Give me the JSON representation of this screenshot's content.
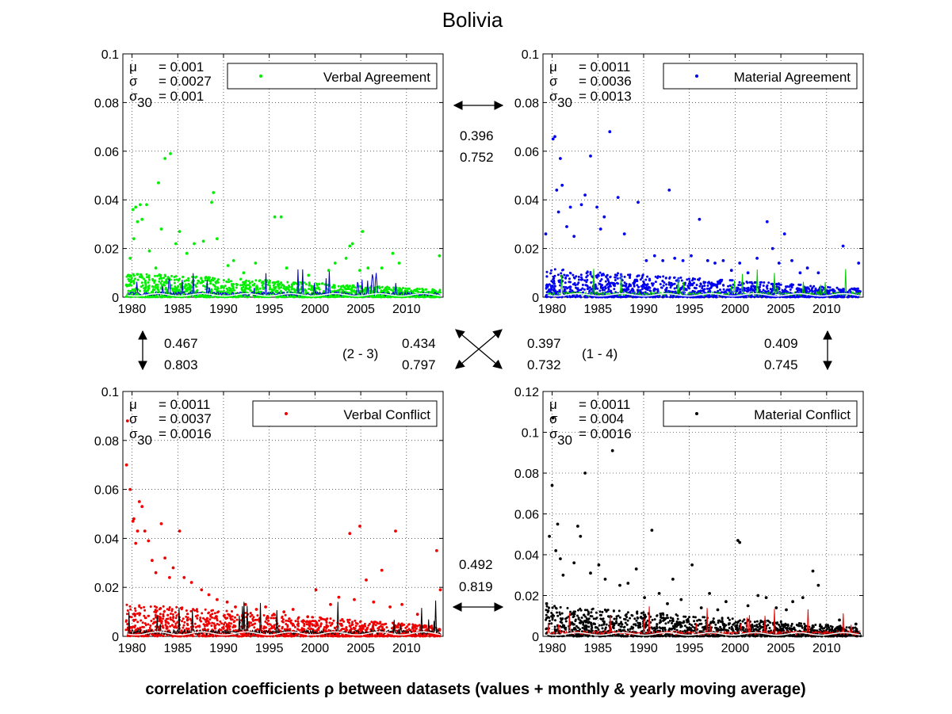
{
  "figure": {
    "title": "Bolivia",
    "caption": "correlation coefficients ρ between datasets (values + monthly & yearly moving average)"
  },
  "chart_data": [
    {
      "type": "scatter",
      "id": "verbal-agreement",
      "legend": "Verbal Agreement",
      "color": "#00ee00",
      "avg_color": "#0000cc",
      "xlim": [
        1979,
        2014
      ],
      "ylim": [
        0,
        0.1
      ],
      "xticks": [
        1980,
        1985,
        1990,
        1995,
        2000,
        2005,
        2010
      ],
      "xtick_labels": [
        "1980",
        "1985",
        "1990",
        "1995",
        "2000",
        "2005",
        "2010"
      ],
      "yticks": [
        0,
        0.02,
        0.04,
        0.06,
        0.08,
        0.1
      ],
      "ytick_labels": [
        "0",
        "0.02",
        "0.04",
        "0.06",
        "0.08",
        "0.1"
      ],
      "grid": true,
      "legend_position": "top-right",
      "stats": {
        "mu": "= 0.001",
        "sigma": "= 0.0027",
        "sigma30": "= 0.001"
      },
      "outliers": [
        [
          1979.4,
          0.005
        ],
        [
          1979.6,
          0.009
        ],
        [
          1979.8,
          0.016
        ],
        [
          1980.1,
          0.036
        ],
        [
          1980.2,
          0.024
        ],
        [
          1980.4,
          0.037
        ],
        [
          1980.6,
          0.031
        ],
        [
          1980.9,
          0.038
        ],
        [
          1981.1,
          0.032
        ],
        [
          1981.6,
          0.038
        ],
        [
          1981.9,
          0.019
        ],
        [
          1982.6,
          0.012
        ],
        [
          1982.9,
          0.047
        ],
        [
          1983.2,
          0.028
        ],
        [
          1983.6,
          0.057
        ],
        [
          1984.2,
          0.059
        ],
        [
          1984.8,
          0.022
        ],
        [
          1985.2,
          0.027
        ],
        [
          1986.0,
          0.018
        ],
        [
          1986.8,
          0.022
        ],
        [
          1987.8,
          0.023
        ],
        [
          1988.7,
          0.039
        ],
        [
          1988.9,
          0.043
        ],
        [
          1989.3,
          0.024
        ],
        [
          1990.5,
          0.013
        ],
        [
          1991.1,
          0.015
        ],
        [
          1992.2,
          0.01
        ],
        [
          1993.5,
          0.014
        ],
        [
          1995.6,
          0.033
        ],
        [
          1996.3,
          0.033
        ],
        [
          1996.9,
          0.012
        ],
        [
          1999.3,
          0.009
        ],
        [
          2001.5,
          0.011
        ],
        [
          2002.2,
          0.014
        ],
        [
          2003.4,
          0.016
        ],
        [
          2003.8,
          0.021
        ],
        [
          2004.1,
          0.022
        ],
        [
          2004.9,
          0.011
        ],
        [
          2005.2,
          0.027
        ],
        [
          2005.8,
          0.012
        ],
        [
          2007.3,
          0.012
        ],
        [
          2008.5,
          0.018
        ],
        [
          2009.2,
          0.014
        ],
        [
          2013.6,
          0.017
        ]
      ],
      "base_level": 0.006,
      "avg_level": 0.0012
    },
    {
      "type": "scatter",
      "id": "material-agreement",
      "legend": "Material Agreement",
      "color": "#0000ee",
      "avg_color": "#00cc00",
      "xlim": [
        1979,
        2014
      ],
      "ylim": [
        0,
        0.1
      ],
      "xticks": [
        1980,
        1985,
        1990,
        1995,
        2000,
        2005,
        2010
      ],
      "xtick_labels": [
        "1980",
        "1985",
        "1990",
        "1995",
        "2000",
        "2005",
        "2010"
      ],
      "yticks": [
        0,
        0.02,
        0.04,
        0.06,
        0.08,
        0.1
      ],
      "ytick_labels": [
        "0",
        "0.02",
        "0.04",
        "0.06",
        "0.08",
        "0.1"
      ],
      "grid": true,
      "legend_position": "top-right",
      "stats": {
        "mu": "= 0.0011",
        "sigma": "= 0.0036",
        "sigma30": "= 0.0013"
      },
      "outliers": [
        [
          1979.3,
          0.026
        ],
        [
          1980.1,
          0.065
        ],
        [
          1980.3,
          0.066
        ],
        [
          1980.5,
          0.044
        ],
        [
          1980.7,
          0.035
        ],
        [
          1980.9,
          0.057
        ],
        [
          1981.1,
          0.046
        ],
        [
          1981.6,
          0.029
        ],
        [
          1982.0,
          0.037
        ],
        [
          1982.4,
          0.025
        ],
        [
          1983.2,
          0.038
        ],
        [
          1983.6,
          0.042
        ],
        [
          1984.2,
          0.058
        ],
        [
          1984.9,
          0.037
        ],
        [
          1985.3,
          0.028
        ],
        [
          1985.7,
          0.033
        ],
        [
          1986.3,
          0.068
        ],
        [
          1987.2,
          0.041
        ],
        [
          1987.9,
          0.026
        ],
        [
          1989.4,
          0.039
        ],
        [
          1990.3,
          0.015
        ],
        [
          1991.2,
          0.017
        ],
        [
          1992.1,
          0.015
        ],
        [
          1992.8,
          0.044
        ],
        [
          1993.4,
          0.016
        ],
        [
          1994.3,
          0.015
        ],
        [
          1995.2,
          0.017
        ],
        [
          1996.1,
          0.032
        ],
        [
          1997.0,
          0.015
        ],
        [
          1997.8,
          0.014
        ],
        [
          1998.7,
          0.015
        ],
        [
          1999.6,
          0.011
        ],
        [
          2000.5,
          0.014
        ],
        [
          2001.4,
          0.01
        ],
        [
          2002.4,
          0.016
        ],
        [
          2003.5,
          0.031
        ],
        [
          2004.1,
          0.02
        ],
        [
          2004.8,
          0.014
        ],
        [
          2005.4,
          0.026
        ],
        [
          2006.2,
          0.015
        ],
        [
          2007.1,
          0.01
        ],
        [
          2007.9,
          0.012
        ],
        [
          2009.1,
          0.01
        ],
        [
          2011.8,
          0.021
        ],
        [
          2013.5,
          0.014
        ]
      ],
      "base_level": 0.007,
      "avg_level": 0.0012
    },
    {
      "type": "scatter",
      "id": "verbal-conflict",
      "legend": "Verbal Conflict",
      "color": "#ee0000",
      "avg_color": "#000000",
      "xlim": [
        1979,
        2014
      ],
      "ylim": [
        0,
        0.1
      ],
      "xticks": [
        1980,
        1985,
        1990,
        1995,
        2000,
        2005,
        2010
      ],
      "xtick_labels": [
        "1980",
        "1985",
        "1990",
        "1995",
        "2000",
        "2005",
        "2010"
      ],
      "yticks": [
        0,
        0.02,
        0.04,
        0.06,
        0.08,
        0.1
      ],
      "ytick_labels": [
        "0",
        "0.02",
        "0.04",
        "0.06",
        "0.08",
        "0.1"
      ],
      "grid": true,
      "legend_position": "top-right",
      "stats": {
        "mu": "= 0.0011",
        "sigma": "= 0.0037",
        "sigma30": "= 0.0016"
      },
      "outliers": [
        [
          1979.4,
          0.07
        ],
        [
          1979.5,
          0.088
        ],
        [
          1979.8,
          0.06
        ],
        [
          1980.1,
          0.047
        ],
        [
          1980.2,
          0.048
        ],
        [
          1980.4,
          0.038
        ],
        [
          1980.6,
          0.043
        ],
        [
          1980.8,
          0.055
        ],
        [
          1981.1,
          0.053
        ],
        [
          1981.4,
          0.043
        ],
        [
          1981.8,
          0.039
        ],
        [
          1982.2,
          0.031
        ],
        [
          1982.6,
          0.026
        ],
        [
          1983.2,
          0.046
        ],
        [
          1983.6,
          0.032
        ],
        [
          1984.1,
          0.024
        ],
        [
          1984.5,
          0.028
        ],
        [
          1985.2,
          0.043
        ],
        [
          1985.7,
          0.024
        ],
        [
          1986.5,
          0.022
        ],
        [
          1987.6,
          0.019
        ],
        [
          1988.4,
          0.017
        ],
        [
          1989.3,
          0.015
        ],
        [
          1990.4,
          0.014
        ],
        [
          1991.3,
          0.012
        ],
        [
          1992.4,
          0.013
        ],
        [
          1993.6,
          0.011
        ],
        [
          1994.6,
          0.012
        ],
        [
          1995.5,
          0.009
        ],
        [
          1996.6,
          0.01
        ],
        [
          1997.6,
          0.011
        ],
        [
          1999.2,
          0.008
        ],
        [
          2000.1,
          0.019
        ],
        [
          2001.7,
          0.013
        ],
        [
          2002.6,
          0.016
        ],
        [
          2003.8,
          0.042
        ],
        [
          2004.3,
          0.015
        ],
        [
          2004.9,
          0.045
        ],
        [
          2005.6,
          0.023
        ],
        [
          2006.4,
          0.014
        ],
        [
          2007.3,
          0.027
        ],
        [
          2008.2,
          0.012
        ],
        [
          2008.8,
          0.043
        ],
        [
          2009.5,
          0.013
        ],
        [
          2011.2,
          0.009
        ],
        [
          2013.3,
          0.035
        ],
        [
          2013.7,
          0.019
        ]
      ],
      "base_level": 0.008,
      "avg_level": 0.0015
    },
    {
      "type": "scatter",
      "id": "material-conflict",
      "legend": "Material Conflict",
      "color": "#000000",
      "avg_color": "#ee0000",
      "xlim": [
        1979,
        2014
      ],
      "ylim": [
        0,
        0.12
      ],
      "xticks": [
        1980,
        1985,
        1990,
        1995,
        2000,
        2005,
        2010
      ],
      "xtick_labels": [
        "1980",
        "1985",
        "1990",
        "1995",
        "2000",
        "2005",
        "2010"
      ],
      "yticks": [
        0,
        0.02,
        0.04,
        0.06,
        0.08,
        0.1,
        0.12
      ],
      "ytick_labels": [
        "0",
        "0.02",
        "0.04",
        "0.06",
        "0.08",
        "0.1",
        "0.12"
      ],
      "grid": true,
      "legend_position": "top-right",
      "stats": {
        "mu": "= 0.0011",
        "sigma": "= 0.004",
        "sigma30": "= 0.0016"
      },
      "outliers": [
        [
          1979.4,
          0.016
        ],
        [
          1979.7,
          0.049
        ],
        [
          1980.0,
          0.074
        ],
        [
          1980.1,
          0.107
        ],
        [
          1980.4,
          0.042
        ],
        [
          1980.6,
          0.055
        ],
        [
          1980.9,
          0.038
        ],
        [
          1981.2,
          0.03
        ],
        [
          1982.4,
          0.036
        ],
        [
          1982.8,
          0.054
        ],
        [
          1983.1,
          0.049
        ],
        [
          1983.6,
          0.08
        ],
        [
          1984.2,
          0.031
        ],
        [
          1985.1,
          0.035
        ],
        [
          1985.8,
          0.028
        ],
        [
          1986.6,
          0.091
        ],
        [
          1987.4,
          0.025
        ],
        [
          1988.3,
          0.026
        ],
        [
          1989.2,
          0.033
        ],
        [
          1990.1,
          0.019
        ],
        [
          1990.9,
          0.052
        ],
        [
          1991.7,
          0.021
        ],
        [
          1992.6,
          0.016
        ],
        [
          1993.2,
          0.028
        ],
        [
          1994.1,
          0.018
        ],
        [
          1995.3,
          0.035
        ],
        [
          1996.3,
          0.014
        ],
        [
          1997.2,
          0.021
        ],
        [
          1998.1,
          0.013
        ],
        [
          1999.0,
          0.017
        ],
        [
          2000.3,
          0.047
        ],
        [
          2000.5,
          0.046
        ],
        [
          2001.4,
          0.015
        ],
        [
          2002.5,
          0.02
        ],
        [
          2003.4,
          0.019
        ],
        [
          2004.5,
          0.014
        ],
        [
          2005.6,
          0.013
        ],
        [
          2006.3,
          0.017
        ],
        [
          2007.4,
          0.019
        ],
        [
          2008.5,
          0.032
        ],
        [
          2009.1,
          0.025
        ],
        [
          2011.4,
          0.008
        ],
        [
          2013.2,
          0.006
        ]
      ],
      "base_level": 0.009,
      "avg_level": 0.0015
    }
  ],
  "correlations": {
    "top": [
      "0.396",
      "0.752"
    ],
    "bottom": [
      "0.492",
      "0.819"
    ],
    "left": [
      "0.467",
      "0.803"
    ],
    "right": [
      "0.409",
      "0.745"
    ],
    "diag_23": {
      "label": "(2 - 3)",
      "values": [
        "0.434",
        "0.797"
      ]
    },
    "diag_14": {
      "label": "(1 - 4)",
      "values": [
        "0.397",
        "0.732"
      ]
    }
  },
  "stat_symbols": {
    "mu": "μ",
    "sigma": "σ",
    "sigma30_base": "σ",
    "sigma30_sub": "30"
  }
}
